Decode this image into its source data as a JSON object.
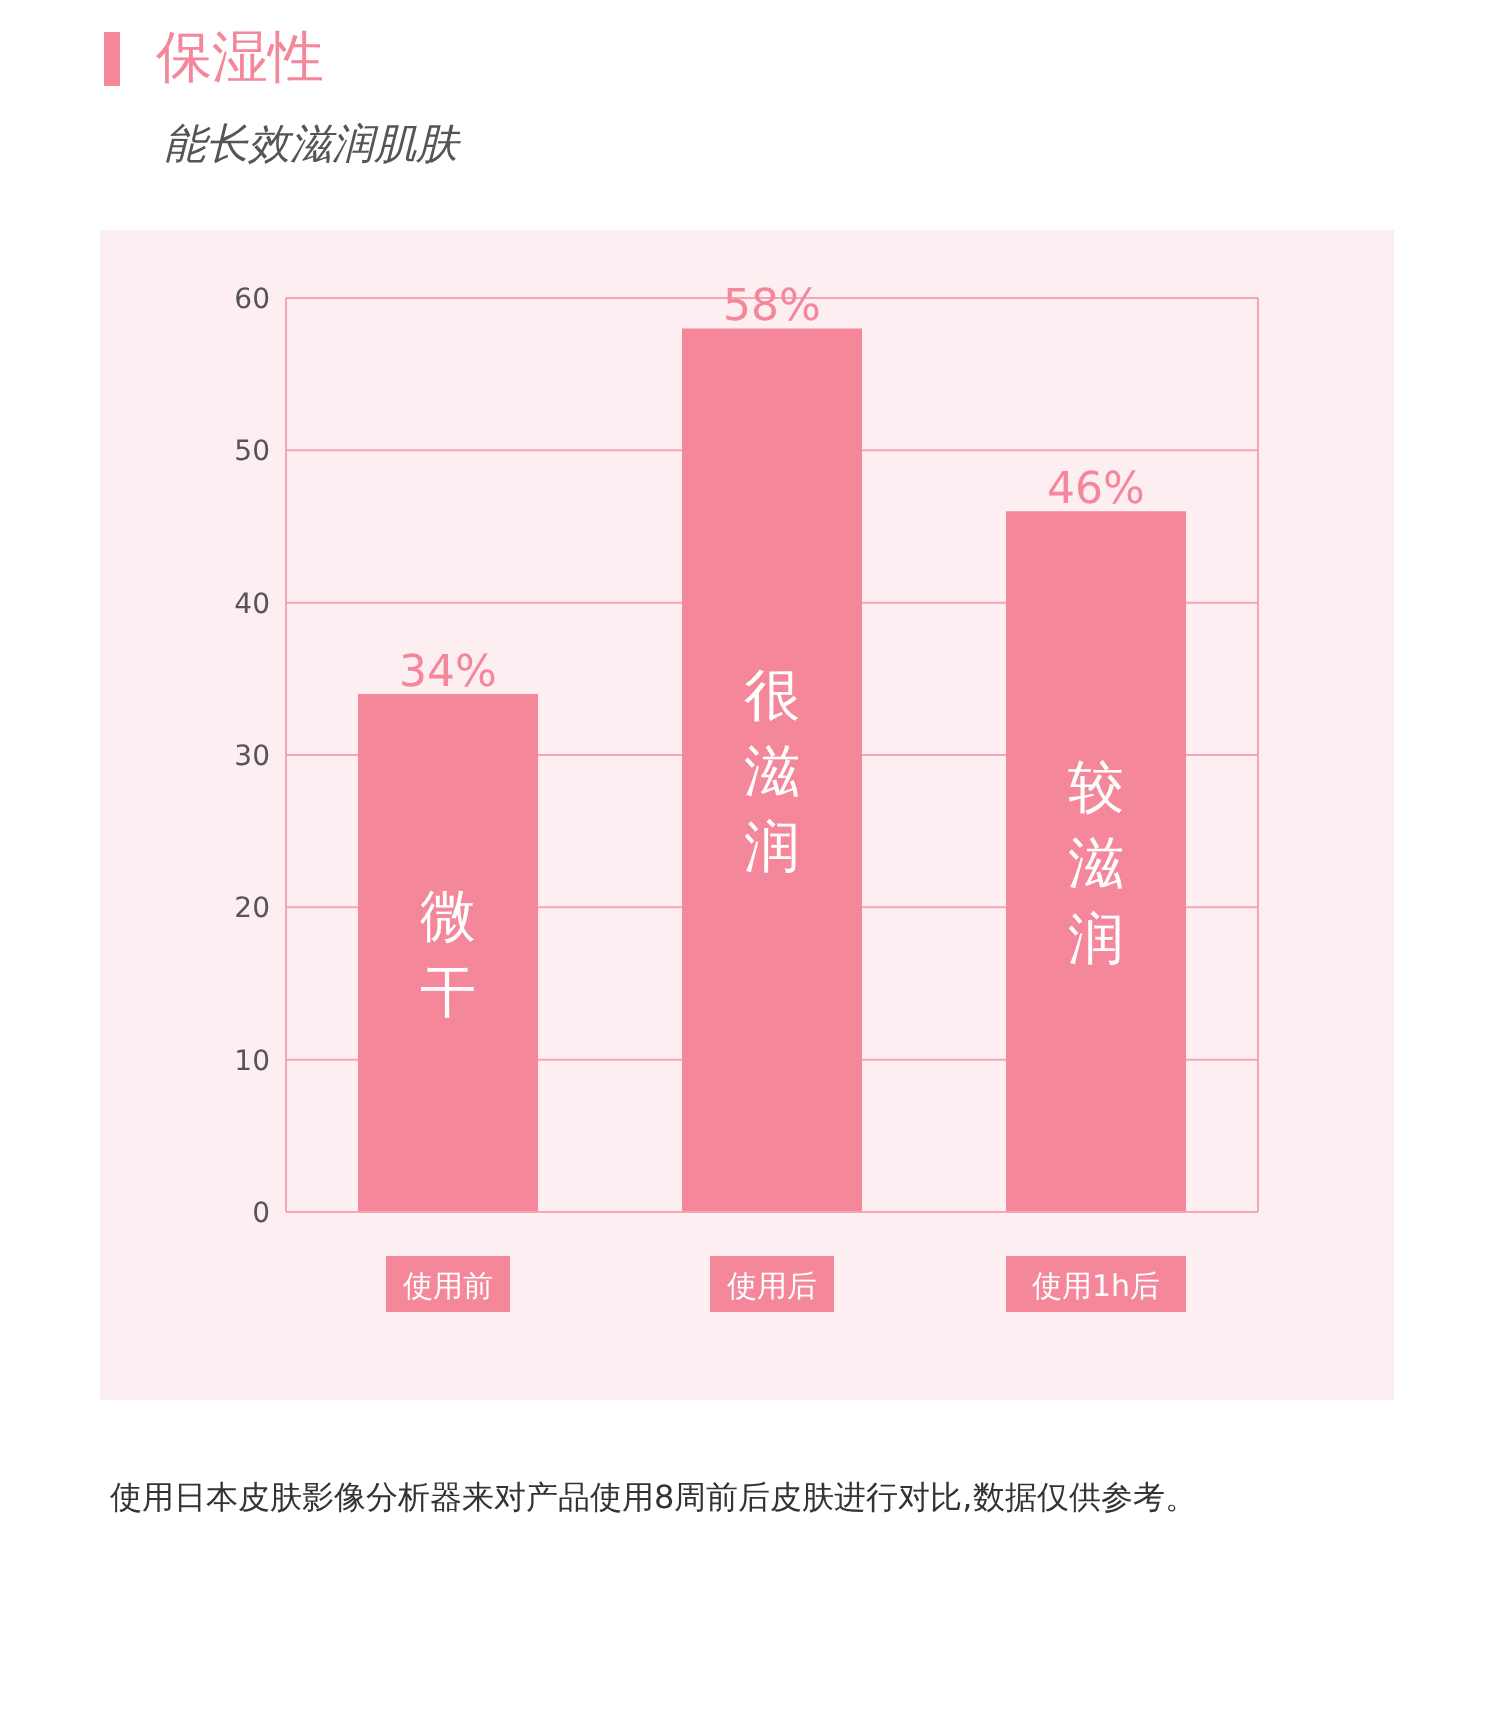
{
  "chart_data": {
    "type": "bar",
    "title": "保湿性",
    "subtitle": "能长效滋润肌肤",
    "categories": [
      "使用前",
      "使用后",
      "使用1h后"
    ],
    "values": [
      34,
      58,
      46
    ],
    "color": "#f4879a",
    "value_labels": [
      "34%",
      "58%",
      "46%"
    ],
    "ylim": [
      0,
      60
    ],
    "yticks": [
      0,
      10,
      20,
      30,
      40,
      50,
      60
    ],
    "grid": "y",
    "annotations": [
      "微干",
      "很滋润",
      "较滋润",
      "使用日本皮肤影像分析器来对产品使用8周前后皮肤进行对比,数据仅供参考。"
    ]
  }
}
